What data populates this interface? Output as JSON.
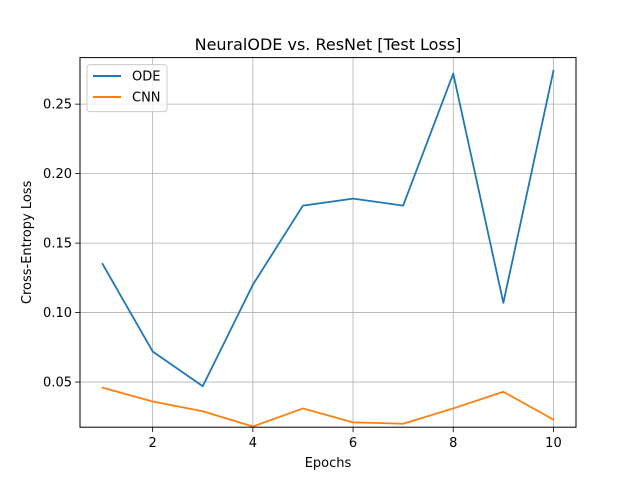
{
  "chart_data": {
    "type": "line",
    "title": "NeuralODE vs. ResNet [Test Loss]",
    "xlabel": "Epochs",
    "ylabel": "Cross-Entropy Loss",
    "x": [
      1,
      2,
      3,
      4,
      5,
      6,
      7,
      8,
      9,
      10
    ],
    "xlim": [
      0.55,
      10.45
    ],
    "ylim": [
      0.0175,
      0.2835
    ],
    "xticks": [
      2,
      4,
      6,
      8,
      10
    ],
    "xtick_labels": [
      "2",
      "4",
      "6",
      "8",
      "10"
    ],
    "yticks": [
      0.05,
      0.1,
      0.15,
      0.2,
      0.25
    ],
    "ytick_labels": [
      "0.05",
      "0.10",
      "0.15",
      "0.20",
      "0.25"
    ],
    "grid": true,
    "legend_position": "top-left",
    "series": [
      {
        "name": "ODE",
        "color": "#1f77b4",
        "values": [
          0.135,
          0.072,
          0.047,
          0.12,
          0.177,
          0.182,
          0.177,
          0.272,
          0.107,
          0.274
        ]
      },
      {
        "name": "CNN",
        "color": "#ff7f0e",
        "values": [
          0.046,
          0.036,
          0.029,
          0.018,
          0.031,
          0.021,
          0.02,
          0.031,
          0.043,
          0.023
        ]
      }
    ]
  }
}
